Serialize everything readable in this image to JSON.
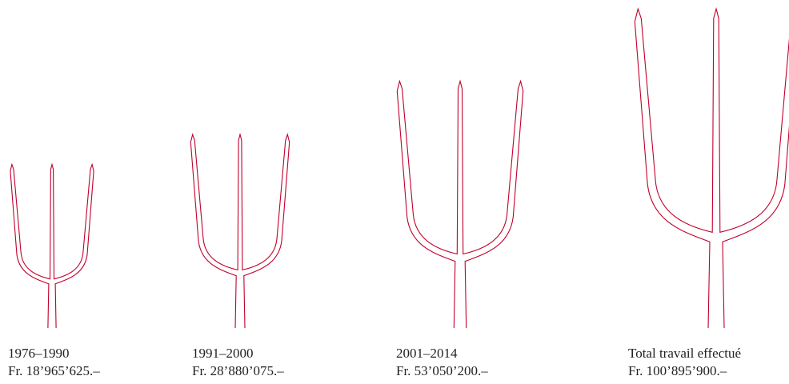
{
  "chart_data": {
    "type": "trident",
    "categories": [
      "1976–1990",
      "1991–2000",
      "2001–2014",
      "Total travail effectué"
    ],
    "values": [
      18965625,
      28880075,
      53050200,
      100895900
    ],
    "value_labels": [
      "Fr. 18’965’625.–",
      "Fr. 28’880’075.–",
      "Fr. 53’050’200.–",
      "Fr. 100’895’900.–"
    ],
    "color": "#c0002a"
  }
}
